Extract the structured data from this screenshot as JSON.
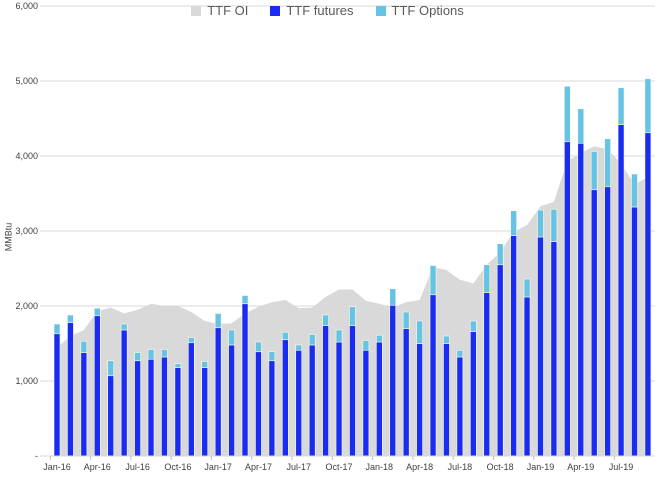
{
  "chart_data": {
    "type": "bar",
    "subtype": "stacked bar with area",
    "title": "",
    "xlabel": "",
    "ylabel": "MMBtu",
    "ylim": [
      0,
      6000
    ],
    "yticks": [
      "-",
      "1,000",
      "2,000",
      "3,000",
      "4,000",
      "5,000",
      "6,000"
    ],
    "ytick_values": [
      0,
      1000,
      2000,
      3000,
      4000,
      5000,
      6000
    ],
    "grid": true,
    "legend_placement": "top",
    "categories": [
      "Jan-16",
      "Feb-16",
      "Mar-16",
      "Apr-16",
      "May-16",
      "Jun-16",
      "Jul-16",
      "Aug-16",
      "Sep-16",
      "Oct-16",
      "Nov-16",
      "Dec-16",
      "Jan-17",
      "Feb-17",
      "Mar-17",
      "Apr-17",
      "May-17",
      "Jun-17",
      "Jul-17",
      "Aug-17",
      "Sep-17",
      "Oct-17",
      "Nov-17",
      "Dec-17",
      "Jan-18",
      "Feb-18",
      "Mar-18",
      "Apr-18",
      "May-18",
      "Jun-18",
      "Jul-18",
      "Aug-18",
      "Sep-18",
      "Oct-18",
      "Nov-18",
      "Dec-18",
      "Jan-19",
      "Feb-19",
      "Mar-19",
      "Apr-19",
      "May-19",
      "Jun-19",
      "Jul-19",
      "Aug-19",
      "Sep-19"
    ],
    "xtick_labels": [
      "Jan-16",
      "Apr-16",
      "Jul-16",
      "Oct-16",
      "Jan-17",
      "Apr-17",
      "Jul-17",
      "Oct-17",
      "Jan-18",
      "Apr-18",
      "Jul-18",
      "Oct-18",
      "Jan-19",
      "Apr-19",
      "Jul-19"
    ],
    "series": [
      {
        "name": "TTF OI",
        "type": "area",
        "color": "#d9d9d9",
        "values": [
          1450,
          1600,
          1680,
          1930,
          1980,
          1900,
          1950,
          2030,
          2000,
          2000,
          1920,
          1800,
          1760,
          1770,
          1900,
          1990,
          2050,
          2080,
          1970,
          1980,
          2120,
          2220,
          2220,
          2070,
          2030,
          1980,
          2050,
          2080,
          2520,
          2480,
          2350,
          2300,
          2550,
          2720,
          2990,
          3080,
          3330,
          3390,
          3930,
          4040,
          4130,
          4090,
          3900,
          3620,
          3720
        ]
      },
      {
        "name": "TTF futures",
        "type": "bar",
        "color": "#1a2cf2",
        "values": [
          1630,
          1780,
          1380,
          1870,
          1070,
          1680,
          1270,
          1290,
          1320,
          1180,
          1510,
          1180,
          1710,
          1480,
          2030,
          1390,
          1270,
          1550,
          1410,
          1480,
          1740,
          1520,
          1740,
          1410,
          1520,
          2010,
          1700,
          1500,
          2150,
          1500,
          1320,
          1660,
          2180,
          2550,
          2940,
          2120,
          2920,
          2860,
          4190,
          4170,
          3550,
          3590,
          4420,
          3320,
          4310
        ]
      },
      {
        "name": "TTF Options",
        "type": "bar",
        "stacked": true,
        "color": "#66c3e8",
        "values": [
          130,
          100,
          150,
          100,
          200,
          80,
          110,
          130,
          100,
          50,
          70,
          80,
          190,
          200,
          110,
          130,
          120,
          100,
          70,
          140,
          140,
          160,
          250,
          130,
          90,
          220,
          220,
          300,
          390,
          100,
          90,
          140,
          370,
          280,
          330,
          240,
          360,
          430,
          740,
          460,
          510,
          640,
          490,
          440,
          720
        ]
      }
    ]
  }
}
